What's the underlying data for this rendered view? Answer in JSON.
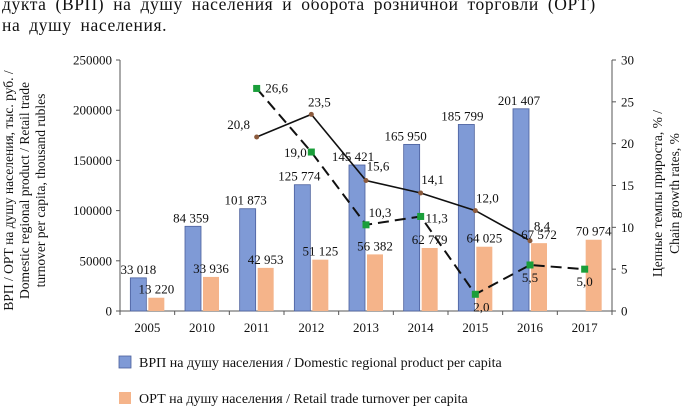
{
  "header_text": {
    "line1": "дукта (ВРП) на душу населения и оборота розничной торговли (ОРТ)",
    "line2": "на душу населения."
  },
  "chart_data": {
    "type": "bar",
    "categories": [
      "2005",
      "2010",
      "2011",
      "2012",
      "2013",
      "2014",
      "2015",
      "2016",
      "2017"
    ],
    "series": [
      {
        "name": "ВРП на душу населения / Domestic regional product per capita",
        "type": "bar",
        "axis": "left",
        "color": "#7f9ad6",
        "values": [
          33018,
          84359,
          101873,
          125774,
          145421,
          165950,
          185799,
          201407,
          null
        ],
        "labels": [
          "33 018",
          "84 359",
          "101 873",
          "125 774",
          "145 421",
          "165 950",
          "185 799",
          "201 407",
          ""
        ]
      },
      {
        "name": "ОРТ на душу населения / Retail trade turnover per capita",
        "type": "bar",
        "axis": "left",
        "color": "#f5b48a",
        "values": [
          13220,
          33936,
          42953,
          51125,
          56382,
          62779,
          64025,
          67572,
          70974
        ],
        "labels": [
          "13 220",
          "33 936",
          "42 953",
          "51 125",
          "56 382",
          "62 779",
          "64 025",
          "67 572",
          "70 974"
        ]
      },
      {
        "type": "line",
        "axis": "right",
        "style": "solid",
        "marker": "dot",
        "color": "#111111",
        "values": [
          null,
          null,
          20.8,
          23.5,
          15.6,
          14.1,
          12.0,
          8.4,
          null
        ],
        "labels": [
          "",
          "",
          "20,8",
          "23,5",
          "15,6",
          "14,1",
          "12,0",
          "8,4",
          ""
        ]
      },
      {
        "type": "line",
        "axis": "right",
        "style": "dashed",
        "marker": "square",
        "color": "#111111",
        "marker_color": "#1a9e3a",
        "values": [
          null,
          null,
          26.6,
          19.0,
          10.3,
          11.3,
          2.0,
          5.5,
          5.0
        ],
        "labels": [
          "",
          "",
          "26,6",
          "19,0",
          "10,3",
          "11,3",
          "2,0",
          "5,5",
          "5,0"
        ]
      }
    ],
    "y_left": {
      "label_lines": [
        "ВРП / ОРТ на душу населения, тыс. руб. /",
        "Domestic regional product / Retail trade",
        "turnover per capita, thousand rubles"
      ],
      "range": [
        0,
        250000
      ],
      "ticks": [
        "0",
        "50000",
        "100000",
        "150000",
        "200000",
        "250000"
      ]
    },
    "y_right": {
      "label_lines": [
        "Цепные темпы прироста, % /",
        "Chain growth rates, %"
      ],
      "range": [
        0,
        30
      ],
      "ticks": [
        "0",
        "5",
        "10",
        "15",
        "20",
        "25",
        "30"
      ]
    },
    "grid": false,
    "legend_position": "bottom"
  }
}
